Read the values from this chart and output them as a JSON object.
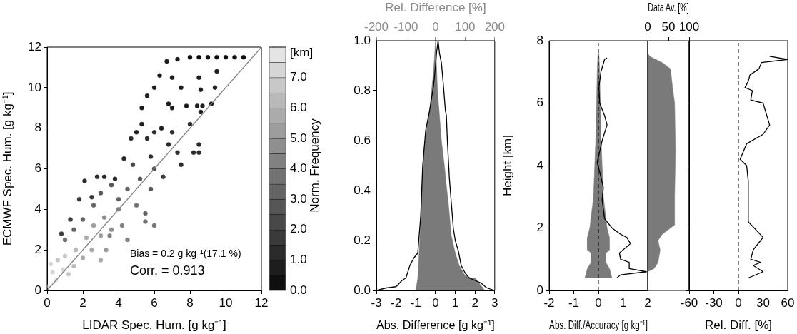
{
  "chart_data": [
    {
      "type": "scatter",
      "xlabel": "LIDAR Spec. Hum. [g kg⁻¹]",
      "ylabel": "ECMWF Spec. Hum. [g kg⁻¹]",
      "xlim": [
        0,
        12
      ],
      "ylim": [
        0,
        12
      ],
      "xticks": [
        0,
        2,
        4,
        6,
        8,
        10,
        12
      ],
      "yticks": [
        0,
        2,
        4,
        6,
        8,
        10,
        12
      ],
      "clabel": "[km]",
      "clim": [
        0,
        8
      ],
      "cticks": [
        {
          "value": 0,
          "label": "0.0"
        },
        {
          "value": 1,
          "label": "1.0"
        },
        {
          "value": 2,
          "label": "2.0"
        },
        {
          "value": 3,
          "label": "3.0"
        },
        {
          "value": 4,
          "label": "4.0"
        },
        {
          "value": 5,
          "label": "5.0"
        },
        {
          "value": 6,
          "label": "6.0"
        },
        {
          "value": 7,
          "label": "7.0"
        }
      ],
      "annotations": [
        "Bias = 0.2 g kg⁻¹(17.1 %)",
        "Corr. = 0.913"
      ],
      "series": [
        {
          "marker": "circle",
          "colors": [
            "#e4e4e4",
            "#d6d6d6",
            "#d6d6d6",
            "#c8c8c8",
            "#e4e4e4",
            "#d6d6d6",
            "#c8c8c8",
            "#c8c8c8",
            "#b9b9b9",
            "#b9b9b9",
            "#ababab",
            "#ababab",
            "#ababab",
            "#9d9d9d",
            "#9d9d9d",
            "#ababab",
            "#8f8f8f",
            "#8f8f8f",
            "#9d9d9d",
            "#818181",
            "#818181",
            "#818181",
            "#727272",
            "#646464",
            "#646464",
            "#646464",
            "#565656",
            "#565656",
            "#646464",
            "#646464",
            "#727272",
            "#727272",
            "#727272",
            "#565656",
            "#484848",
            "#565656",
            "#484848",
            "#646464",
            "#818181",
            "#3a3a3a",
            "#3a3a3a",
            "#3a3a3a",
            "#2b2b2b",
            "#2b2b2b",
            "#2b2b2b",
            "#2b2b2b",
            "#3a3a3a",
            "#2b2b2b",
            "#2b2b2b",
            "#1d1d1d",
            "#1d1d1d",
            "#2b2b2b",
            "#2b2b2b",
            "#1d1d1d",
            "#2b2b2b",
            "#2b2b2b",
            "#2b2b2b",
            "#2b2b2b",
            "#2b2b2b",
            "#2b2b2b",
            "#2b2b2b",
            "#3a3a3a",
            "#2b2b2b",
            "#2b2b2b",
            "#1d1d1d",
            "#1d1d1d",
            "#1d1d1d",
            "#1d1d1d",
            "#1d1d1d",
            "#1d1d1d",
            "#1d1d1d",
            "#1d1d1d",
            "#1d1d1d",
            "#0f0f0f",
            "#0f0f0f",
            "#0f0f0f",
            "#0f0f0f",
            "#0f0f0f",
            "#0f0f0f",
            "#0f0f0f",
            "#1d1d1d",
            "#1d1d1d",
            "#1d1d1d",
            "#1d1d1d",
            "#1d1d1d",
            "#1d1d1d",
            "#1d1d1d",
            "#1d1d1d",
            "#1d1d1d",
            "#1d1d1d"
          ],
          "x": [
            0.1,
            0.3,
            0.2,
            0.6,
            0.5,
            0.9,
            1.0,
            1.2,
            1.5,
            1.6,
            2.0,
            2.2,
            2.5,
            2.6,
            3.0,
            3.0,
            3.2,
            3.6,
            3.3,
            4.0,
            4.2,
            4.5,
            1.0,
            1.5,
            2.0,
            2.6,
            3.0,
            3.6,
            4.0,
            4.5,
            5.0,
            5.5,
            6.0,
            5.2,
            4.8,
            5.8,
            6.0,
            5.5,
            3.5,
            0.8,
            1.3,
            1.8,
            2.1,
            2.8,
            3.2,
            3.8,
            2.5,
            4.3,
            4.7,
            5.0,
            5.3,
            5.6,
            6.0,
            6.4,
            7.0,
            6.8,
            7.3,
            7.5,
            8.2,
            8.5,
            8.5,
            6.5,
            5.8,
            8.0,
            8.6,
            8.7,
            9.2,
            5.3,
            5.6,
            6.0,
            6.3,
            6.7,
            7.3,
            8.0,
            8.5,
            9.0,
            9.5,
            10.0,
            10.5,
            11.0,
            7.0,
            7.5,
            8.5,
            9.5,
            9.4,
            8.6,
            6.8,
            7.8,
            7.0,
            8.4
          ],
          "values": [
            0.2,
            0.9,
            1.3,
            1.5,
            0.5,
            1.0,
            1.7,
            0.8,
            1.2,
            2.0,
            1.6,
            2.6,
            2.0,
            3.2,
            2.7,
            1.5,
            3.6,
            3.0,
            2.0,
            4.0,
            3.2,
            2.5,
            2.5,
            3.0,
            3.5,
            4.2,
            4.8,
            5.2,
            4.5,
            5.0,
            4.2,
            3.4,
            3.2,
            5.5,
            6.2,
            5.0,
            6.0,
            3.8,
            2.7,
            2.8,
            3.5,
            4.5,
            5.4,
            5.6,
            5.6,
            5.5,
            4.6,
            6.5,
            7.5,
            7.8,
            8.2,
            7.5,
            7.8,
            8.0,
            7.8,
            7.2,
            6.8,
            6.2,
            6.8,
            7.2,
            6.8,
            5.6,
            6.6,
            8.2,
            8.8,
            9.1,
            9.2,
            9.0,
            9.6,
            10.0,
            10.6,
            11.3,
            11.4,
            11.5,
            11.5,
            11.5,
            11.5,
            11.5,
            11.5,
            11.5,
            10.5,
            10.0,
            10.5,
            10.8,
            10.0,
            9.9,
            9.2,
            9.1,
            9.0,
            9.1
          ],
          "cvalues": [
            7.5,
            7.2,
            7,
            6.8,
            7.5,
            7,
            6.5,
            6.8,
            6.2,
            6,
            5.8,
            5.5,
            5.5,
            5,
            5,
            5.5,
            4.5,
            4.5,
            5,
            4,
            4,
            4.2,
            3.5,
            3.2,
            3,
            3,
            2.8,
            2.5,
            3.2,
            3,
            3.5,
            3.8,
            3.8,
            2.6,
            2.3,
            2.8,
            2.2,
            3.4,
            4.2,
            1.8,
            1.6,
            1.5,
            1.2,
            1,
            1,
            1.2,
            1.5,
            1.4,
            1.0,
            0.8,
            0.8,
            1.0,
            1.0,
            0.9,
            1.0,
            1.0,
            1.1,
            1.2,
            1.0,
            1.0,
            1.0,
            1.6,
            1.4,
            1.0,
            0.9,
            0.9,
            0.9,
            0.6,
            0.6,
            0.6,
            0.5,
            0.5,
            0.5,
            0.4,
            0.4,
            0.4,
            0.4,
            0.4,
            0.4,
            0.4,
            0.5,
            0.5,
            0.5,
            0.5,
            0.5,
            0.5,
            0.6,
            0.6,
            0.6,
            0.6
          ]
        },
        {
          "type": "line",
          "x": [
            0,
            12
          ],
          "values": [
            0,
            12
          ],
          "color": "#808080"
        }
      ]
    },
    {
      "type": "area",
      "xlabel": "Abs. Difference [g kg⁻¹]",
      "ylabel": "Norm. Frequency",
      "xlim": [
        -3,
        3
      ],
      "ylim": [
        0,
        1
      ],
      "xticks": [
        -3,
        -2,
        -1,
        0,
        1,
        2,
        3
      ],
      "yticks": [
        {
          "value": 0,
          "label": "0.0"
        },
        0.2,
        0.4,
        0.6,
        0.8,
        {
          "value": 1,
          "label": "1.0"
        }
      ],
      "x2label": "Rel. Difference [%]",
      "x2lim": [
        -200,
        200
      ],
      "x2ticks": [
        -200,
        -100,
        0,
        100,
        200
      ],
      "series": [
        {
          "color": "#7a7a7a",
          "x": [
            -1,
            -0.9,
            -0.8,
            -0.7,
            -0.6,
            -0.5,
            -0.3,
            -0.1,
            0,
            0.1,
            0.2,
            0.3,
            0.45,
            0.55,
            0.65,
            0.8,
            1.0,
            1.2,
            1.5,
            1.8,
            2.0,
            2.3,
            2.5
          ],
          "values": [
            0,
            0.05,
            0.2,
            0.4,
            0.55,
            0.62,
            0.72,
            0.88,
            1.0,
            0.8,
            0.7,
            0.6,
            0.5,
            0.42,
            0.35,
            0.22,
            0.15,
            0.1,
            0.06,
            0.05,
            0.05,
            0.02,
            0
          ]
        },
        {
          "type": "line",
          "color": "#000000",
          "x": [
            -3,
            -2.5,
            -2,
            -1.7,
            -1.5,
            -1.3,
            -1.1,
            -0.9,
            -0.75,
            -0.65,
            -0.5,
            -0.4,
            -0.3,
            -0.2,
            -0.1,
            0,
            0.05,
            0.13,
            0.2,
            0.3,
            0.4,
            0.5,
            0.55,
            0.6,
            0.7,
            0.8,
            0.9,
            1.0,
            1.15,
            1.3,
            1.5,
            1.7,
            2.0,
            2.3,
            2.6,
            3
          ],
          "values": [
            0,
            0.01,
            0.015,
            0.04,
            0.05,
            0.1,
            0.13,
            0.15,
            0.3,
            0.5,
            0.64,
            0.68,
            0.72,
            0.77,
            0.82,
            0.9,
            0.95,
            1.0,
            0.95,
            0.91,
            0.82,
            0.72,
            0.7,
            0.6,
            0.45,
            0.35,
            0.25,
            0.2,
            0.16,
            0.1,
            0.07,
            0.05,
            0.04,
            0.03,
            0.01,
            0
          ]
        }
      ]
    },
    {
      "type": "line",
      "xlabel": "Abs. Diff./Accuracy [g kg⁻¹]",
      "ylabel": "Height [km]",
      "xlim": [
        -2,
        2
      ],
      "ylim": [
        0,
        8
      ],
      "xticks": [
        -2,
        -1,
        0,
        1,
        2
      ],
      "yticks": [
        0,
        2,
        4,
        6,
        8
      ],
      "ref_lines": [
        {
          "axis": "x",
          "value": 0,
          "line_style": "dashed"
        }
      ],
      "series": [
        {
          "type": "area",
          "color": "#7a7a7a",
          "x": [
            0.55,
            0.45,
            0.3,
            0.3,
            0.45,
            0.45,
            0.35,
            0.2,
            0.15,
            0.1,
            0.05,
            0.02,
            -0.02,
            -0.05,
            -0.1,
            -0.15,
            -0.2,
            -0.35,
            -0.45,
            -0.45,
            -0.3,
            -0.3,
            -0.45,
            -0.55
          ],
          "values": [
            0.4,
            0.7,
            0.9,
            1.2,
            1.3,
            1.7,
            2.0,
            3.0,
            4.0,
            5.0,
            7.0,
            7.6,
            7.6,
            7.0,
            5.0,
            4.0,
            3.0,
            2.0,
            1.7,
            1.3,
            1.2,
            0.9,
            0.7,
            0.4
          ]
        },
        {
          "color": "#000000",
          "x": [
            0.75,
            0.9,
            1.95,
            1.25,
            1.25,
            0.9,
            0.85,
            1.3,
            1.15,
            0.9,
            0.55,
            0.25,
            0.15,
            0.2,
            0.05,
            -0.05,
            0.15,
            0.35,
            0.25,
            0.05,
            0.02,
            0.1,
            0.25,
            0.35
          ],
          "values": [
            0.4,
            0.5,
            0.6,
            0.7,
            0.9,
            1.0,
            1.2,
            1.5,
            1.7,
            1.8,
            2.0,
            2.3,
            2.9,
            3.3,
            3.8,
            4.1,
            4.8,
            5.3,
            5.6,
            6.0,
            6.5,
            7.0,
            7.4,
            7.45
          ]
        }
      ]
    },
    {
      "type": "area",
      "xlabel": "Data Av. [%]",
      "xlim": [
        0,
        100
      ],
      "ylim": [
        0,
        8
      ],
      "xticks": [
        0,
        50,
        100
      ],
      "tick_labels": "x",
      "series": [
        {
          "color": "#7a7a7a",
          "x": [
            0,
            15,
            25,
            30,
            25,
            35,
            55,
            65,
            65,
            67,
            65,
            60,
            55,
            35,
            5,
            0
          ],
          "values": [
            0.6,
            0.7,
            0.9,
            1.3,
            1.6,
            1.8,
            2.0,
            2.1,
            3.0,
            4.5,
            6.0,
            6.5,
            7.1,
            7.3,
            7.5,
            7.6
          ]
        }
      ]
    },
    {
      "type": "line",
      "xlabel": "Rel. Diff. [%]",
      "xlim": [
        -60,
        60
      ],
      "ylim": [
        0,
        8
      ],
      "xticks": [
        -60,
        -30,
        0,
        30,
        60
      ],
      "yticks": [
        0,
        2,
        4,
        6,
        8
      ],
      "tick_labels": "x",
      "ref_lines": [
        {
          "axis": "x",
          "value": 0,
          "line_style": "dashed"
        }
      ],
      "series": [
        {
          "color": "#000000",
          "x": [
            12,
            30,
            18,
            27,
            15,
            18,
            27,
            30,
            12,
            12,
            10,
            2,
            10,
            30,
            38,
            30,
            15,
            17,
            8,
            12,
            14,
            25,
            28,
            60,
            38
          ],
          "values": [
            0.4,
            0.6,
            0.8,
            0.9,
            1.0,
            1.3,
            1.6,
            1.7,
            2.2,
            3.5,
            4.0,
            4.2,
            4.7,
            5.0,
            5.3,
            6.0,
            6.1,
            6.4,
            6.5,
            6.7,
            6.9,
            7.1,
            7.3,
            7.4,
            7.5
          ]
        }
      ]
    }
  ]
}
